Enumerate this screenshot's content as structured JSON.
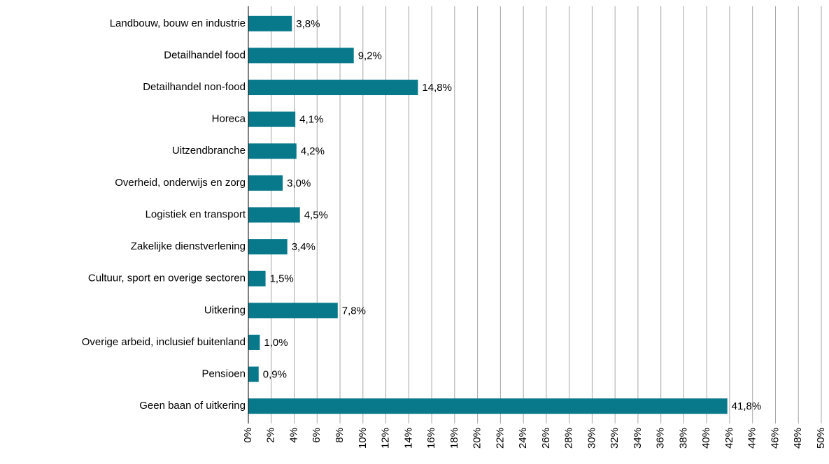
{
  "chart_data": {
    "type": "bar",
    "orientation": "horizontal",
    "categories": [
      "Landbouw, bouw en industrie",
      "Detailhandel food",
      "Detailhandel non-food",
      "Horeca",
      "Uitzendbranche",
      "Overheid, onderwijs en zorg",
      "Logistiek en transport",
      "Zakelijke dienstverlening",
      "Cultuur, sport en overige sectoren",
      "Uitkering",
      "Overige arbeid, inclusief buitenland",
      "Pensioen",
      "Geen baan of uitkering"
    ],
    "values": [
      3.8,
      9.2,
      14.8,
      4.1,
      4.2,
      3.0,
      4.5,
      3.4,
      1.5,
      7.8,
      1.0,
      0.9,
      41.8
    ],
    "value_labels": [
      "3,8%",
      "9,2%",
      "14,8%",
      "4,1%",
      "4,2%",
      "3,0%",
      "4,5%",
      "3,4%",
      "1,5%",
      "7,8%",
      "1,0%",
      "0,9%",
      "41,8%"
    ],
    "color": "#07798a",
    "xlim": [
      0,
      50
    ],
    "xticks": [
      {
        "value": 0,
        "label": "0%"
      },
      {
        "value": 2,
        "label": "2%"
      },
      {
        "value": 4,
        "label": "4%"
      },
      {
        "value": 6,
        "label": "6%"
      },
      {
        "value": 8,
        "label": "8%"
      },
      {
        "value": 10,
        "label": "10%"
      },
      {
        "value": 12,
        "label": "12%"
      },
      {
        "value": 14,
        "label": "14%"
      },
      {
        "value": 16,
        "label": "16%"
      },
      {
        "value": 18,
        "label": "18%"
      },
      {
        "value": 20,
        "label": "20%"
      },
      {
        "value": 22,
        "label": "22%"
      },
      {
        "value": 24,
        "label": "24%"
      },
      {
        "value": 26,
        "label": "26%"
      },
      {
        "value": 28,
        "label": "28%"
      },
      {
        "value": 30,
        "label": "30%"
      },
      {
        "value": 32,
        "label": "32%"
      },
      {
        "value": 34,
        "label": "34%"
      },
      {
        "value": 36,
        "label": "36%"
      },
      {
        "value": 38,
        "label": "38%"
      },
      {
        "value": 40,
        "label": "40%"
      },
      {
        "value": 42,
        "label": "42%"
      },
      {
        "value": 44,
        "label": "44%"
      },
      {
        "value": 46,
        "label": "46%"
      },
      {
        "value": 48,
        "label": "48%"
      },
      {
        "value": 50,
        "label": "50%"
      }
    ],
    "grid": true
  }
}
